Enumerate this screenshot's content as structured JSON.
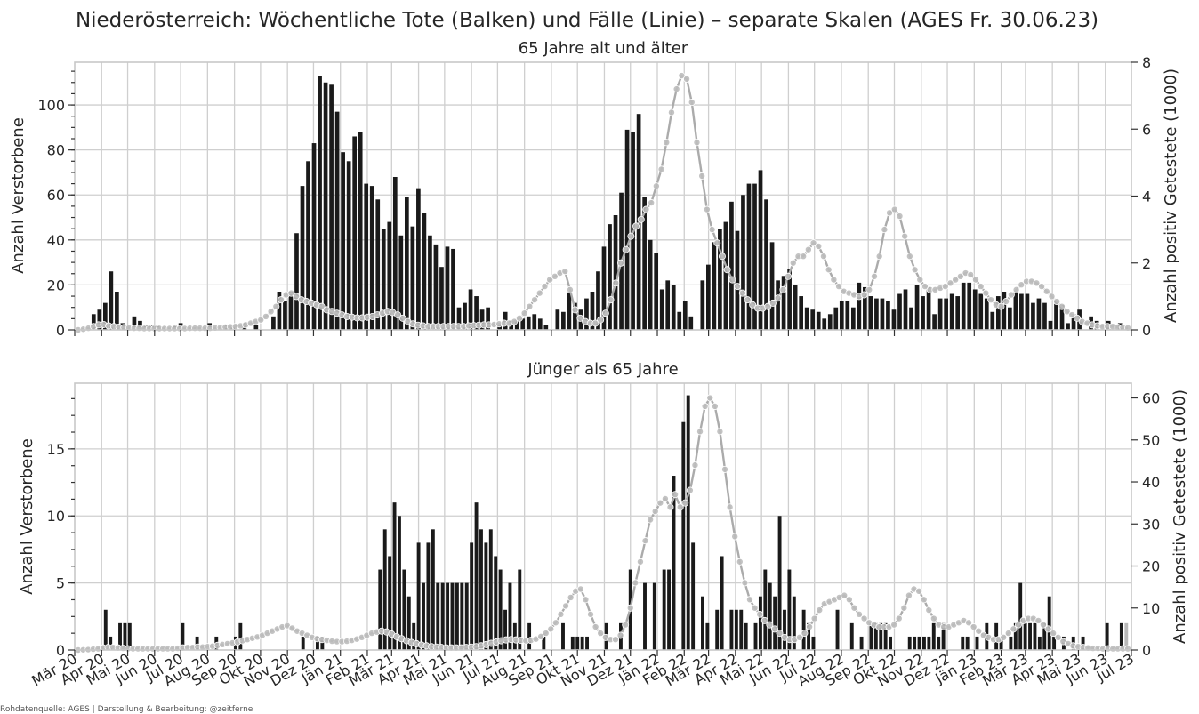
{
  "title": "Niederösterreich: Wöchentliche Tote (Balken) und Fälle (Linie) – separate Skalen (AGES Fr. 30.06.23)",
  "source": "Rohdatenquelle: AGES | Darstellung & Bearbeitung: @zeitferne",
  "colors": {
    "bars": "#1a1a1a",
    "line": "#ababab",
    "marker": "#bdbdbd",
    "last_bar": "#b8b8b8"
  },
  "month_labels": [
    "Mär 20",
    "Apr 20",
    "Mai 20",
    "Jun 20",
    "Jul 20",
    "Aug 20",
    "Sep 20",
    "Okt 20",
    "Nov 20",
    "Dez 20",
    "Jän 21",
    "Feb 21",
    "Mär 21",
    "Apr 21",
    "Mai 21",
    "Jun 21",
    "Jul 21",
    "Aug 21",
    "Sep 21",
    "Okt 21",
    "Nov 21",
    "Dez 21",
    "Jän 22",
    "Feb 22",
    "Mär 22",
    "Apr 22",
    "Mai 22",
    "Jun 22",
    "Jul 22",
    "Aug 22",
    "Sep 22",
    "Okt 22",
    "Nov 22",
    "Dez 22",
    "Jän 23",
    "Feb 23",
    "Mär 23",
    "Apr 23",
    "Mai 23",
    "Jun 23",
    "Jul 23"
  ],
  "chart_data": [
    {
      "type": "bar+line",
      "subtitle": "65 Jahre alt und älter",
      "ylabel": "Anzahl Verstorbene",
      "y2label": "Anzahl positiv Getestete (1000)",
      "ylim": [
        0,
        119
      ],
      "y2lim": [
        0,
        8
      ],
      "yticks": [
        0,
        20,
        40,
        60,
        80,
        100
      ],
      "y2ticks": [
        0,
        2,
        4,
        6,
        8
      ],
      "x_start": "2020-03-01",
      "x_end": "2023-07-01",
      "x_unit": "weeks",
      "bars": [
        0,
        0,
        7,
        9,
        12,
        26,
        17,
        3,
        0,
        6,
        4,
        2,
        2,
        2,
        1,
        0,
        2,
        3,
        0,
        0,
        1,
        0,
        3,
        0,
        0,
        2,
        1,
        0,
        3,
        0,
        2,
        0,
        0,
        6,
        17,
        13,
        17,
        43,
        64,
        75,
        83,
        113,
        110,
        109,
        97,
        79,
        75,
        86,
        88,
        65,
        64,
        58,
        45,
        48,
        68,
        42,
        59,
        46,
        63,
        52,
        42,
        38,
        28,
        37,
        36,
        10,
        12,
        18,
        15,
        9,
        10,
        0,
        2,
        8,
        4,
        4,
        5,
        6,
        7,
        5,
        2,
        0,
        9,
        8,
        17,
        12,
        9,
        14,
        17,
        26,
        37,
        47,
        51,
        61,
        89,
        88,
        96,
        59,
        40,
        34,
        18,
        22,
        20,
        8,
        13,
        6,
        0,
        22,
        29,
        39,
        45,
        48,
        57,
        44,
        60,
        65,
        65,
        71,
        58,
        39,
        22,
        24,
        27,
        20,
        15,
        10,
        9,
        8,
        5,
        7,
        10,
        13,
        13,
        10,
        21,
        19,
        15,
        14,
        14,
        13,
        9,
        16,
        18,
        10,
        20,
        15,
        19,
        7,
        14,
        14,
        16,
        15,
        21,
        21,
        18,
        16,
        14,
        8,
        15,
        17,
        10,
        17,
        16,
        16,
        12,
        14,
        12,
        4,
        13,
        11,
        3,
        7,
        9,
        0,
        6,
        4,
        0,
        4,
        0,
        3,
        1
      ],
      "line": [
        0.0,
        0.02,
        0.05,
        0.1,
        0.15,
        0.16,
        0.12,
        0.1,
        0.08,
        0.07,
        0.06,
        0.05,
        0.05,
        0.04,
        0.04,
        0.04,
        0.04,
        0.04,
        0.04,
        0.04,
        0.04,
        0.04,
        0.05,
        0.05,
        0.05,
        0.05,
        0.05,
        0.06,
        0.07,
        0.08,
        0.09,
        0.1,
        0.12,
        0.15,
        0.2,
        0.25,
        0.3,
        0.4,
        0.55,
        0.7,
        0.9,
        1.05,
        1.1,
        1.0,
        0.9,
        0.85,
        0.8,
        0.75,
        0.7,
        0.6,
        0.55,
        0.5,
        0.45,
        0.4,
        0.38,
        0.36,
        0.36,
        0.38,
        0.4,
        0.45,
        0.5,
        0.55,
        0.52,
        0.45,
        0.35,
        0.25,
        0.18,
        0.14,
        0.12,
        0.1,
        0.1,
        0.1,
        0.1,
        0.1,
        0.1,
        0.1,
        0.1,
        0.12,
        0.13,
        0.14,
        0.15,
        0.15,
        0.16,
        0.18,
        0.2,
        0.2,
        0.25,
        0.35,
        0.5,
        0.7,
        0.9,
        1.1,
        1.3,
        1.5,
        1.6,
        1.7,
        1.75,
        1.2,
        0.6,
        0.35,
        0.25,
        0.2,
        0.2,
        0.3,
        0.5,
        0.9,
        1.4,
        2.0,
        2.4,
        2.8,
        3.1,
        3.3,
        3.6,
        3.8,
        4.3,
        4.8,
        5.6,
        6.5,
        7.2,
        7.6,
        7.5,
        6.8,
        5.6,
        4.6,
        3.6,
        3.0,
        2.6,
        2.2,
        1.8,
        1.5,
        1.3,
        1.1,
        0.9,
        0.75,
        0.65,
        0.65,
        0.7,
        0.8,
        0.95,
        1.2,
        1.6,
        2.0,
        2.2,
        2.2,
        2.4,
        2.6,
        2.5,
        2.2,
        1.8,
        1.5,
        1.3,
        1.15,
        1.1,
        1.05,
        1.0,
        1.05,
        1.2,
        1.6,
        2.2,
        3.0,
        3.5,
        3.6,
        3.4,
        2.8,
        2.2,
        1.8,
        1.5,
        1.3,
        1.2,
        1.2,
        1.25,
        1.3,
        1.4,
        1.5,
        1.6,
        1.7,
        1.65,
        1.5,
        1.3,
        1.1,
        0.9,
        0.75,
        0.7,
        0.85,
        1.05,
        1.2,
        1.35,
        1.45,
        1.45,
        1.4,
        1.3,
        1.15,
        1.0,
        0.85,
        0.7,
        0.55,
        0.45,
        0.35,
        0.25,
        0.2,
        0.15,
        0.12,
        0.1,
        0.1,
        0.1,
        0.08,
        0.07,
        0.06
      ]
    },
    {
      "type": "bar+line",
      "subtitle": "Jünger als 65 Jahre",
      "ylabel": "Anzahl Verstorbene",
      "y2label": "Anzahl positiv Getestete (1000)",
      "ylim": [
        0,
        19.9
      ],
      "y2lim": [
        0,
        63.5
      ],
      "yticks": [
        0,
        5,
        10,
        15
      ],
      "y2ticks": [
        0,
        10,
        20,
        30,
        40,
        50,
        60
      ],
      "x_start": "2020-03-01",
      "x_end": "2023-07-01",
      "x_unit": "weeks",
      "bars": [
        0,
        0,
        0,
        0,
        0,
        3,
        1,
        0,
        2,
        2,
        2,
        0,
        0,
        0,
        0,
        0,
        0,
        0,
        0,
        0,
        0,
        2,
        0,
        0,
        1,
        0,
        0,
        0,
        1,
        0,
        0,
        0,
        1,
        2,
        0,
        0,
        0,
        0,
        0,
        0,
        0,
        0,
        0,
        0,
        0,
        0,
        1,
        0,
        0,
        1,
        1,
        0,
        0,
        0,
        0,
        0,
        0,
        0,
        0,
        0,
        0,
        0,
        6,
        9,
        7,
        11,
        10,
        6,
        4,
        2,
        8,
        5,
        8,
        9,
        5,
        5,
        5,
        5,
        5,
        5,
        5,
        8,
        11,
        9,
        8,
        9,
        7,
        6,
        3,
        5,
        2,
        6,
        0,
        2,
        0,
        0,
        1,
        0,
        0,
        0,
        2,
        0,
        1,
        1,
        1,
        1,
        0,
        0,
        0,
        2,
        0,
        0,
        2,
        0,
        6,
        0,
        0,
        5,
        0,
        5,
        0,
        6,
        6,
        13,
        0,
        17,
        19,
        8,
        0,
        4,
        2,
        0,
        3,
        7,
        0,
        3,
        3,
        3,
        2,
        0,
        2,
        4,
        6,
        5,
        4,
        10,
        3,
        6,
        4,
        0,
        3,
        2,
        1,
        0,
        0,
        0,
        0,
        3,
        0,
        0,
        2,
        0,
        1,
        0,
        2,
        2,
        2,
        2,
        1,
        0,
        0,
        0,
        1,
        1,
        1,
        1,
        1,
        2,
        1,
        2,
        0,
        0,
        0,
        1,
        1,
        0,
        1,
        0,
        2,
        0,
        2,
        1,
        0,
        1,
        2,
        5,
        2,
        2,
        2,
        1,
        2,
        4,
        1,
        0,
        1,
        0,
        1,
        0,
        1,
        0,
        0,
        0,
        0,
        2,
        0,
        0,
        2,
        2
      ],
      "line": [
        0.0,
        0.05,
        0.1,
        0.2,
        0.3,
        0.5,
        0.6,
        0.6,
        0.5,
        0.4,
        0.3,
        0.3,
        0.3,
        0.3,
        0.3,
        0.3,
        0.3,
        0.3,
        0.3,
        0.3,
        0.4,
        0.5,
        0.6,
        0.6,
        0.7,
        0.7,
        0.8,
        0.9,
        1.1,
        1.3,
        1.5,
        1.7,
        1.9,
        2.2,
        2.5,
        2.8,
        3.1,
        3.5,
        4.0,
        4.5,
        5.0,
        5.5,
        5.8,
        5.2,
        4.5,
        4.0,
        3.5,
        3.0,
        2.7,
        2.5,
        2.3,
        2.1,
        2.0,
        2.0,
        2.1,
        2.3,
        2.6,
        3.0,
        3.5,
        4.0,
        4.3,
        4.5,
        4.3,
        3.8,
        3.2,
        2.7,
        2.2,
        1.8,
        1.5,
        1.2,
        1.0,
        0.8,
        0.7,
        0.6,
        0.5,
        0.5,
        0.5,
        0.5,
        0.6,
        0.7,
        0.8,
        1.0,
        1.3,
        1.6,
        1.9,
        2.2,
        2.4,
        2.5,
        2.4,
        2.3,
        2.2,
        2.3,
        2.6,
        3.2,
        4.0,
        5.0,
        6.5,
        8.5,
        10.5,
        12.5,
        14.0,
        14.5,
        12.0,
        8.5,
        5.5,
        4.0,
        3.0,
        2.5,
        2.5,
        3.5,
        6.0,
        10.0,
        16.0,
        21.0,
        26.0,
        31.0,
        33.0,
        35.0,
        36.0,
        34.0,
        37.0,
        34.0,
        35.0,
        38.0,
        44.0,
        52.0,
        58.0,
        60.0,
        58.0,
        52.0,
        43.0,
        34.0,
        27.0,
        21.0,
        16.0,
        12.0,
        10.0,
        8.5,
        7.0,
        6.0,
        5.0,
        4.0,
        3.0,
        2.5,
        2.5,
        3.0,
        4.0,
        5.5,
        7.5,
        9.5,
        11.0,
        11.5,
        12.0,
        12.5,
        13.0,
        12.0,
        10.0,
        8.5,
        7.5,
        6.5,
        6.0,
        5.5,
        5.5,
        5.5,
        6.0,
        7.5,
        10.0,
        13.0,
        14.5,
        14.0,
        12.0,
        9.5,
        7.5,
        6.0,
        5.5,
        5.5,
        6.0,
        6.5,
        7.0,
        6.5,
        5.5,
        4.5,
        3.5,
        3.0,
        2.5,
        2.5,
        3.0,
        4.0,
        5.0,
        6.0,
        7.0,
        7.5,
        7.5,
        7.0,
        6.0,
        5.0,
        4.0,
        3.0,
        2.0,
        1.5,
        1.0,
        0.8,
        0.6,
        0.5,
        0.4,
        0.4,
        0.3,
        0.3,
        0.3,
        0.3,
        0.3,
        0.3
      ]
    }
  ]
}
